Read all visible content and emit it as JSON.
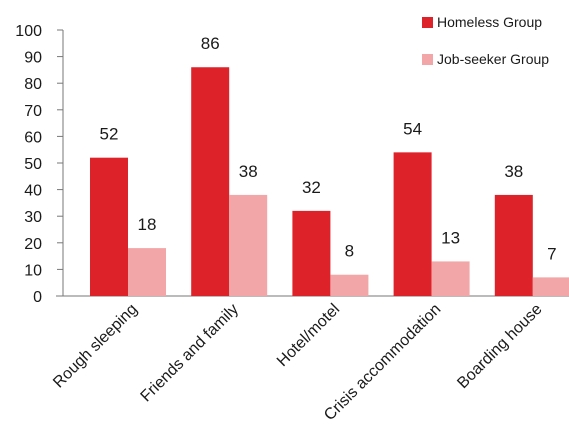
{
  "chart_data": {
    "type": "bar",
    "title": "",
    "xlabel": "",
    "ylabel": "",
    "ylim": [
      0,
      100
    ],
    "yticks": [
      0,
      10,
      20,
      30,
      40,
      50,
      60,
      70,
      80,
      90,
      100
    ],
    "grid": false,
    "legend_position": "top-right",
    "categories": [
      "Rough sleeping",
      "Friends and family",
      "Hotel/motel",
      "Crisis accommodation",
      "Boarding house"
    ],
    "series": [
      {
        "name": "Homeless Group",
        "color": "#de2229",
        "values": [
          52,
          86,
          32,
          54,
          38
        ]
      },
      {
        "name": "Job-seeker Group",
        "color": "#f2a6a7",
        "values": [
          18,
          38,
          8,
          13,
          7
        ]
      }
    ]
  }
}
